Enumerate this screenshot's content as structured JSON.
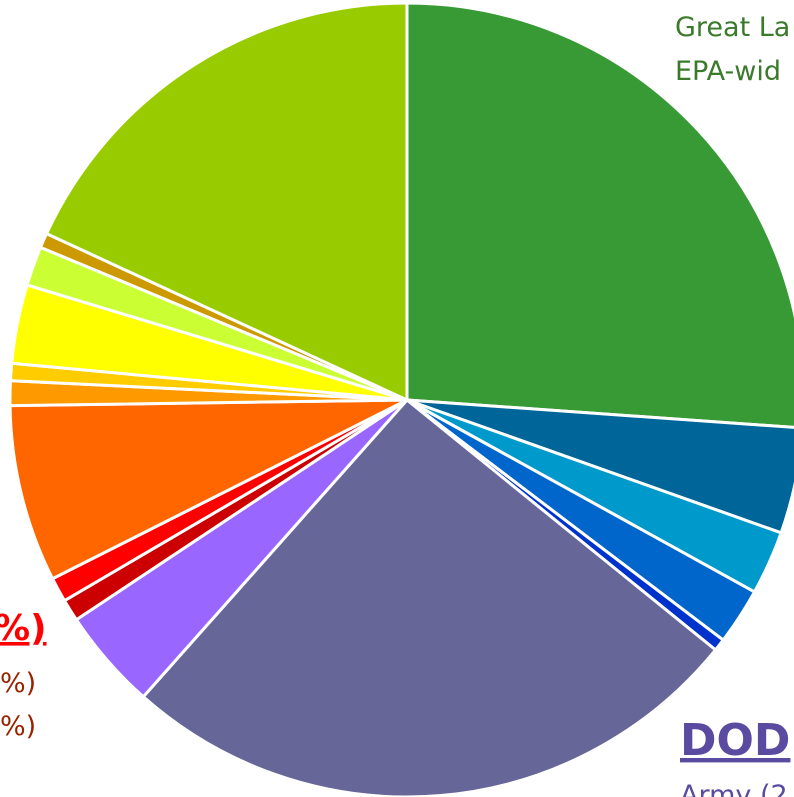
{
  "chart_data": {
    "type": "pie",
    "values": [
      26.1,
      4.3,
      2.6,
      2.3,
      0.5,
      25.7,
      4.1,
      0.9,
      1.0,
      7.2,
      1.0,
      0.7,
      3.2,
      1.6,
      0.6,
      18.1
    ],
    "colors": [
      "#379a35",
      "#006699",
      "#0099cc",
      "#0066cc",
      "#0033cc",
      "#666699",
      "#9966ff",
      "#cc0000",
      "#ff0000",
      "#ff6600",
      "#ff9900",
      "#ffcc00",
      "#ffff00",
      "#ccff33",
      "#cc9900",
      "#99cc00"
    ],
    "annotations": [
      {
        "text": "Great La",
        "color": "#3a7a2a"
      },
      {
        "text": "EPA-wid",
        "color": "#3a7a2a"
      },
      {
        "text": "%)",
        "color": "#ff0000"
      },
      {
        "text": "%)",
        "color": "#992200"
      },
      {
        "text": "%)",
        "color": "#992200"
      },
      {
        "text": "DOD",
        "color": "#5a4aa0"
      },
      {
        "text": "Army (2",
        "color": "#5a4aa0"
      }
    ]
  }
}
